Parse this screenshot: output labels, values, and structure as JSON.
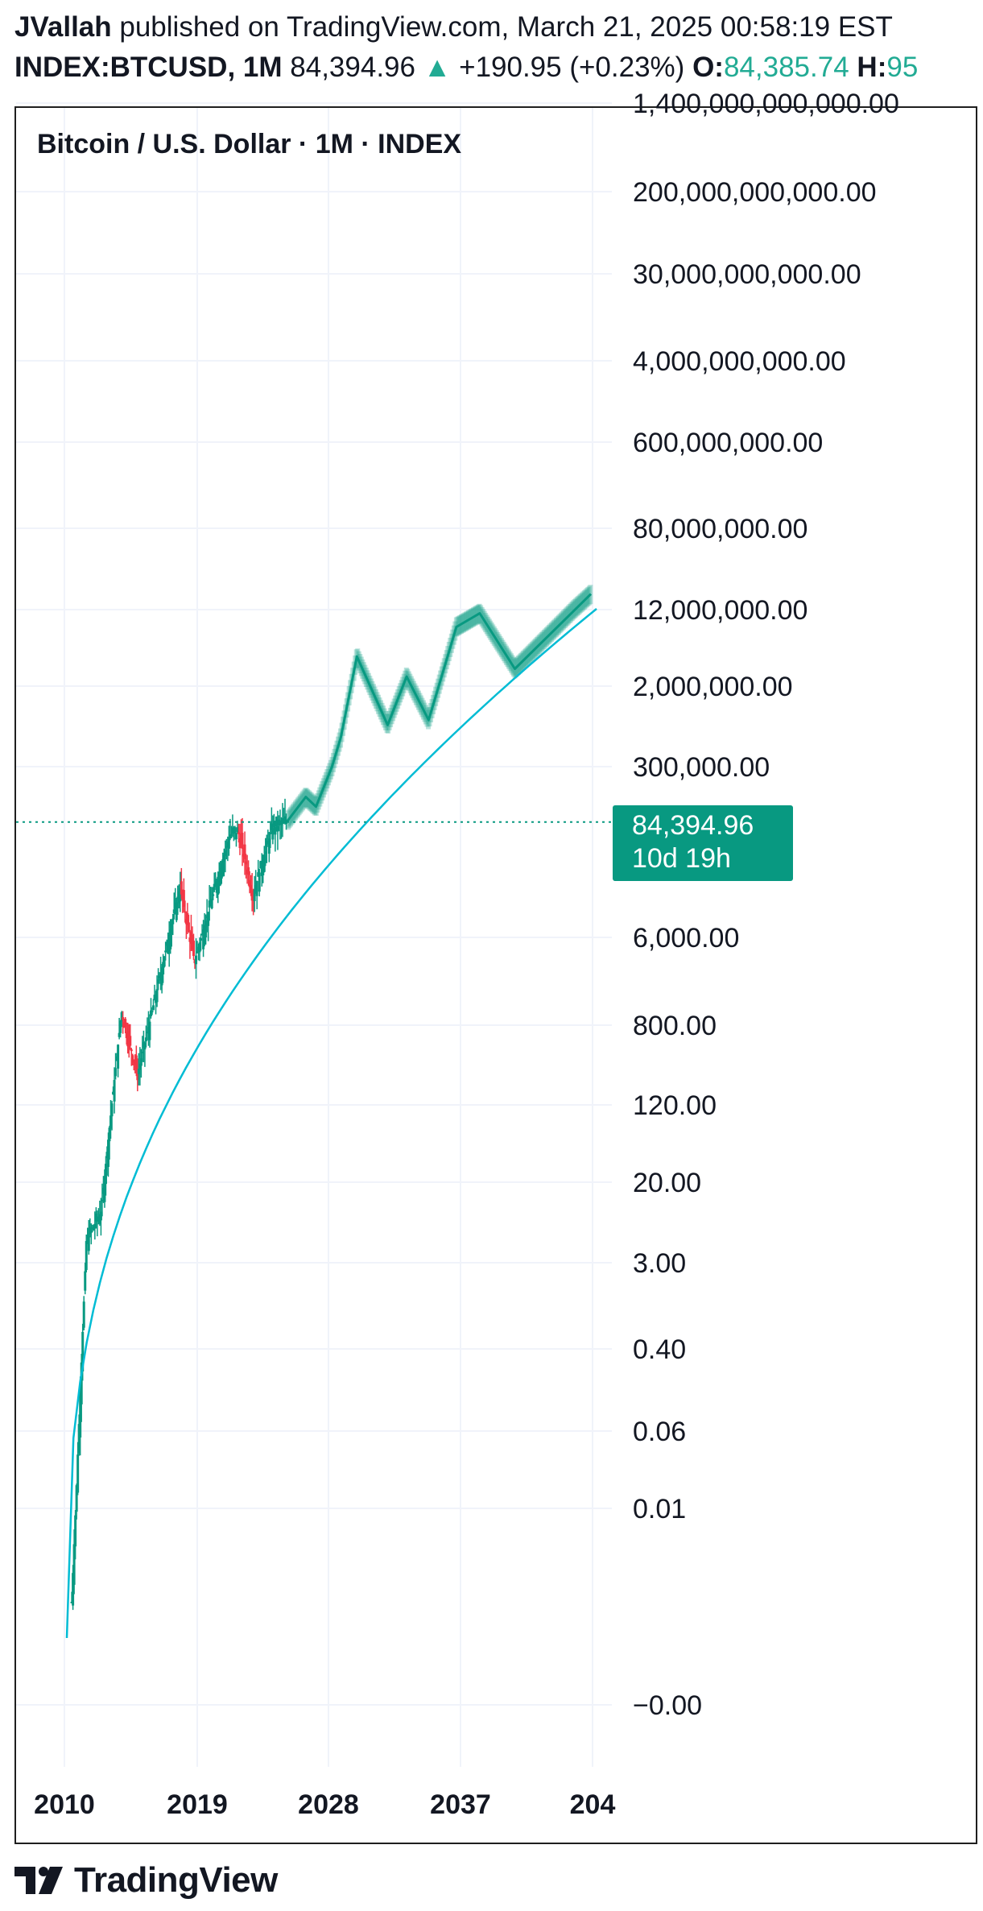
{
  "header": {
    "author": "JVallah",
    "published_text": "published on TradingView.com, March 21, 2025 00:58:19 EST",
    "symbol": "INDEX:BTCUSD,",
    "interval": "1M",
    "last": "84,394.96",
    "change": "+190.95 (+0.23%)",
    "open_label": "O:",
    "open_value": "84,385.74",
    "high_label": "H:",
    "high_value": "95"
  },
  "legend": {
    "title": "Bitcoin / U.S. Dollar · 1M · INDEX"
  },
  "price_tag": {
    "price": "84,394.96",
    "countdown": "10d 19h"
  },
  "footer": {
    "brand": "TradingView"
  },
  "colors": {
    "up": "#089981",
    "down": "#f23645",
    "curve": "#00bcd4",
    "projection": "#089981",
    "grid": "#f0f3fa",
    "tag_bg": "#089981"
  },
  "chart_data": {
    "type": "candlestick",
    "title": "Bitcoin / U.S. Dollar · 1M · INDEX",
    "y_scale": "log",
    "y_ticks": [
      "1,400,000,000,000.00",
      "200,000,000,000.00",
      "30,000,000,000.00",
      "4,000,000,000.00",
      "600,000,000.00",
      "80,000,000.00",
      "12,000,000.00",
      "2,000,000.00",
      "300,000.00",
      "6,000.00",
      "800.00",
      "120.00",
      "20.00",
      "3.00",
      "0.40",
      "0.06",
      "0.01",
      "−0.00"
    ],
    "x_ticks": [
      "2010",
      "2019",
      "2028",
      "2037",
      "204"
    ],
    "last_price": 84394.96,
    "history_approx": [
      {
        "year": 2010.5,
        "price": 0.001
      },
      {
        "year": 2011.5,
        "price": 5
      },
      {
        "year": 2012.5,
        "price": 10
      },
      {
        "year": 2013.9,
        "price": 1100
      },
      {
        "year": 2015.0,
        "price": 250
      },
      {
        "year": 2017.9,
        "price": 19000
      },
      {
        "year": 2018.9,
        "price": 3500
      },
      {
        "year": 2021.3,
        "price": 63000
      },
      {
        "year": 2021.9,
        "price": 67000
      },
      {
        "year": 2022.9,
        "price": 16000
      },
      {
        "year": 2024.2,
        "price": 73000
      },
      {
        "year": 2025.2,
        "price": 84394.96
      }
    ],
    "projection_path_approx": [
      {
        "year": 2025.2,
        "price": 84394.96
      },
      {
        "year": 2026.5,
        "price": 150000
      },
      {
        "year": 2027.2,
        "price": 120000
      },
      {
        "year": 2028.3,
        "price": 300000
      },
      {
        "year": 2028.9,
        "price": 600000
      },
      {
        "year": 2030.0,
        "price": 4000000
      },
      {
        "year": 2032.1,
        "price": 800000
      },
      {
        "year": 2033.4,
        "price": 2500000
      },
      {
        "year": 2034.9,
        "price": 900000
      },
      {
        "year": 2036.8,
        "price": 8000000
      },
      {
        "year": 2038.4,
        "price": 11000000
      },
      {
        "year": 2040.8,
        "price": 3000000
      },
      {
        "year": 2046.0,
        "price": 18000000
      }
    ],
    "trend_curve": "log-growth fit from 2010 to 2046"
  }
}
